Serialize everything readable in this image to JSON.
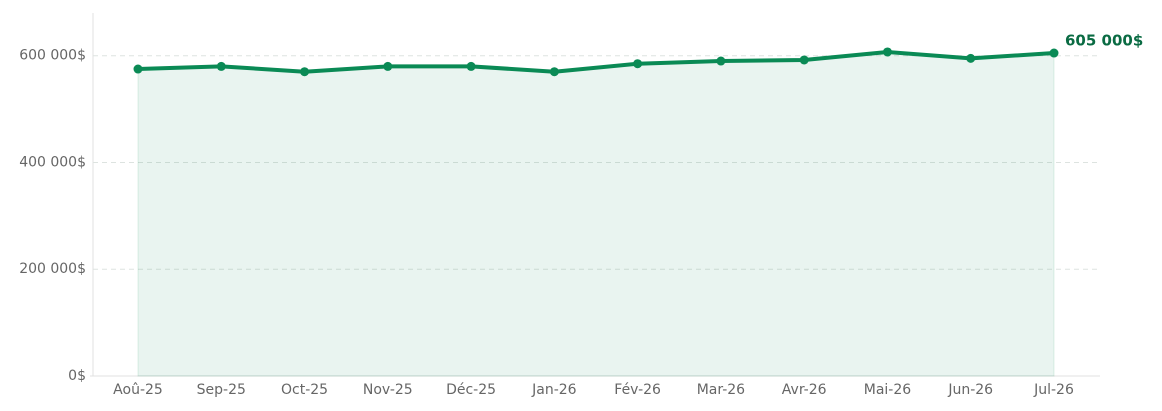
{
  "chart_data": {
    "type": "line",
    "categories": [
      "Aoû-25",
      "Sep-25",
      "Oct-25",
      "Nov-25",
      "Déc-25",
      "Jan-26",
      "Fév-26",
      "Mar-26",
      "Avr-26",
      "Mai-26",
      "Jun-26",
      "Jul-26"
    ],
    "values": [
      575000,
      580000,
      570000,
      580000,
      580000,
      570000,
      585000,
      590000,
      592000,
      607000,
      595000,
      605000
    ],
    "value_labels": [
      null,
      null,
      null,
      null,
      null,
      null,
      null,
      null,
      null,
      null,
      null,
      "605 000$"
    ],
    "color": "#0a8a55",
    "area": true,
    "ylim": [
      0,
      680000
    ],
    "yticks": [
      {
        "value": 0,
        "label": "0$"
      },
      {
        "value": 200000,
        "label": "200 000$"
      },
      {
        "value": 400000,
        "label": "400 000$"
      },
      {
        "value": 600000,
        "label": "600 000$"
      }
    ],
    "grid": true
  }
}
